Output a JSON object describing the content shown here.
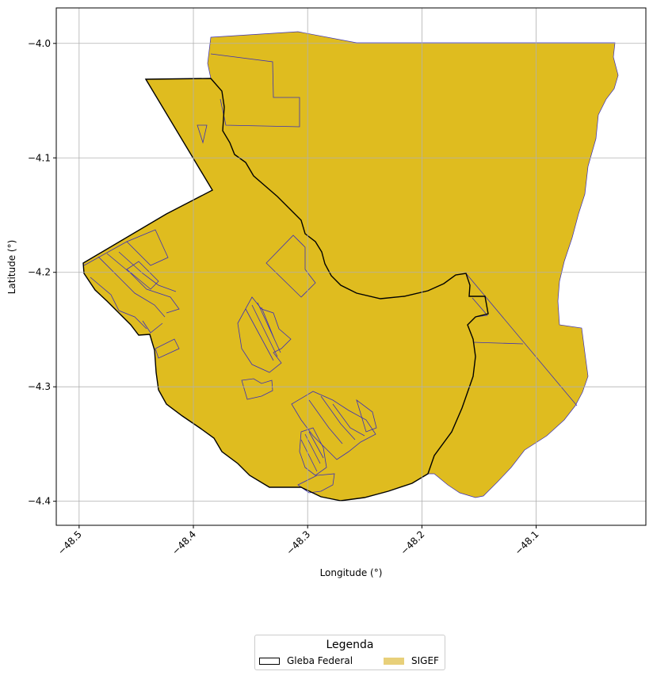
{
  "map": {
    "xlabel": "Longitude (°)",
    "ylabel": "Latitude (°)",
    "x_ticks": [
      "−48.5",
      "−48.4",
      "−48.3",
      "−48.2",
      "−48.1"
    ],
    "x_tick_values": [
      -48.5,
      -48.4,
      -48.3,
      -48.2,
      -48.1
    ],
    "y_ticks": [
      "−4.0",
      "−4.1",
      "−4.2",
      "−4.3",
      "−4.4"
    ],
    "y_tick_values": [
      -4.0,
      -4.1,
      -4.2,
      -4.3,
      -4.4
    ],
    "xlim": [
      -48.52,
      -48.004
    ],
    "ylim": [
      -4.421,
      -3.969
    ],
    "grid": true,
    "colors": {
      "fill": "#dfbc1f",
      "parcel_edge": "#3a2fb8",
      "gleba_edge": "#000000",
      "grid": "#b0b0b0",
      "legend_sigef": "#e8d07a"
    }
  },
  "legend": {
    "title": "Legenda",
    "placement": "bottom-center",
    "items": [
      {
        "label": "Gleba Federal"
      },
      {
        "label": "SIGEF"
      }
    ]
  }
}
